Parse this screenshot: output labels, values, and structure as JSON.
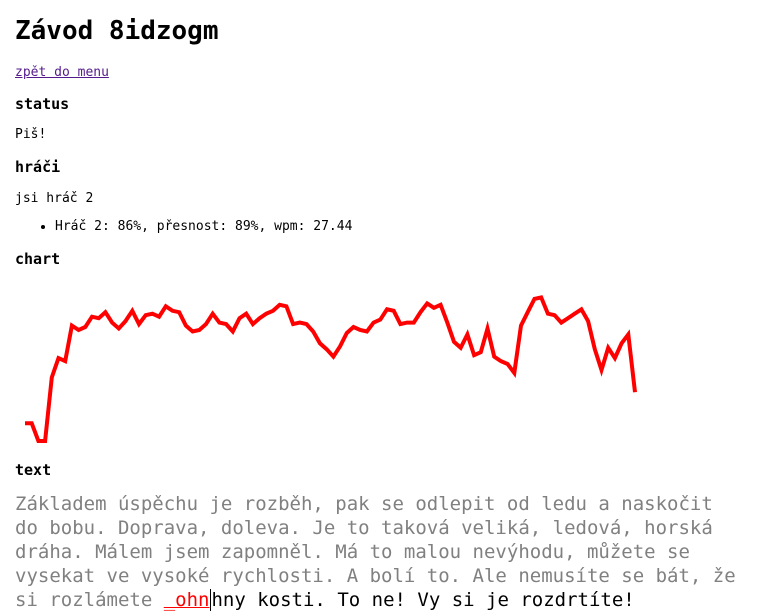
{
  "page": {
    "title": "Závod 8idzogm",
    "back_link": "zpět do menu"
  },
  "status": {
    "heading": "status",
    "text": "Piš!"
  },
  "players": {
    "heading": "hráči",
    "you_are": "jsi hráč 2",
    "list": [
      "Hráč 2: 86%, přesnost: 89%, wpm: 27.44"
    ]
  },
  "chart": {
    "heading": "chart",
    "color": "#ff0000"
  },
  "chart_data": {
    "type": "line",
    "title": "",
    "xlabel": "",
    "ylabel": "",
    "grid": false,
    "legend": "none",
    "series": [
      {
        "values": [
          12.0,
          12.0,
          0.0,
          0.0,
          43.0,
          56.0,
          54.0,
          78.0,
          75.0,
          77.0,
          84.0,
          83.0,
          87.0,
          80.0,
          76.0,
          81.0,
          88.0,
          79.0,
          85.0,
          86.0,
          84.0,
          91.0,
          88.0,
          87.0,
          78.0,
          74.0,
          75.0,
          79.0,
          86.0,
          80.0,
          79.0,
          74.0,
          83.0,
          86.0,
          79.0,
          83.0,
          86.0,
          88.0,
          92.0,
          91.0,
          79.0,
          80.0,
          79.0,
          74.0,
          66.0,
          62.0,
          57.0,
          64.0,
          73.0,
          77.0,
          75.0,
          74.0,
          80.0,
          82.0,
          89.0,
          88.0,
          79.0,
          80.0,
          80.0,
          87.0,
          93.0,
          90.0,
          92.0,
          80.0,
          67.0,
          63.0,
          72.0,
          58.0,
          60.0,
          76.0,
          57.0,
          54.0,
          52.0,
          46.0,
          78.0,
          87.0,
          96.0,
          97.0,
          86.0,
          85.0,
          80.0,
          83.0,
          86.0,
          89.0,
          81.0,
          62.0,
          48.0,
          63.0,
          56.0,
          66.0,
          72.0,
          33.0
        ]
      }
    ]
  },
  "text": {
    "heading": "text",
    "typed": "Základem úspěchu je rozběh, pak se odlepit od ledu a naskočit do bobu. Doprava, doleva. Je to taková veliká, ledová, horská dráha. Málem jsem zapomněl. Má to malou nevýhodu, můžete se vysekat ve vysoké rychlosti. A bolí to. Ale nemusíte se bát, že si rozlámete ",
    "error": "_ohn",
    "remaining": "hny kosti. To ne! Vy si je rozdrtíte!"
  }
}
